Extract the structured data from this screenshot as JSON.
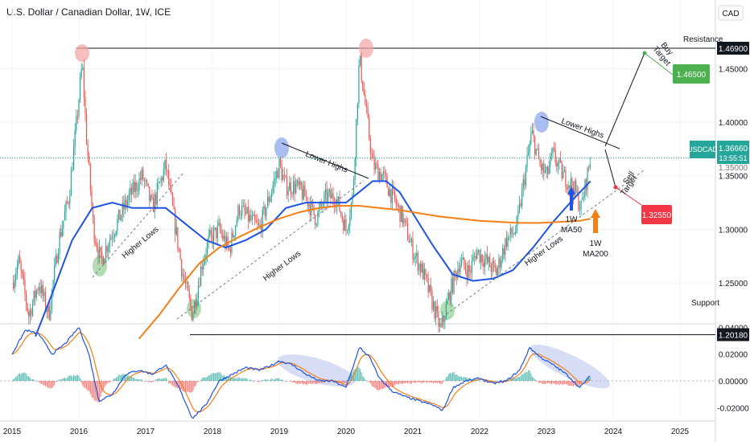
{
  "header": {
    "title": "U.S. Dollar / Canadian Dollar, 1W, ICE",
    "currency": "CAD"
  },
  "chart_data": {
    "type": "candlestick",
    "title": "U.S. Dollar / Canadian Dollar, 1W, ICE",
    "x_ticks": [
      "2015",
      "2016",
      "2017",
      "2018",
      "2019",
      "2020",
      "2021",
      "2022",
      "2023",
      "2024",
      "2025"
    ],
    "y_ticks": [
      "1.45000",
      "1.40000",
      "1.35000",
      "1.30000",
      "1.25000"
    ],
    "ylim": [
      1.19,
      1.49
    ],
    "price_path": [
      [
        2015.0,
        1.25
      ],
      [
        2015.1,
        1.27
      ],
      [
        2015.25,
        1.22
      ],
      [
        2015.4,
        1.25
      ],
      [
        2015.55,
        1.22
      ],
      [
        2015.7,
        1.29
      ],
      [
        2015.85,
        1.33
      ],
      [
        2015.95,
        1.39
      ],
      [
        2016.05,
        1.455
      ],
      [
        2016.12,
        1.38
      ],
      [
        2016.22,
        1.3
      ],
      [
        2016.33,
        1.27
      ],
      [
        2016.45,
        1.29
      ],
      [
        2016.6,
        1.31
      ],
      [
        2016.75,
        1.33
      ],
      [
        2016.95,
        1.35
      ],
      [
        2017.1,
        1.32
      ],
      [
        2017.3,
        1.36
      ],
      [
        2017.45,
        1.3
      ],
      [
        2017.55,
        1.26
      ],
      [
        2017.7,
        1.22
      ],
      [
        2017.85,
        1.27
      ],
      [
        2017.95,
        1.29
      ],
      [
        2018.1,
        1.3
      ],
      [
        2018.25,
        1.28
      ],
      [
        2018.4,
        1.32
      ],
      [
        2018.55,
        1.31
      ],
      [
        2018.7,
        1.3
      ],
      [
        2018.85,
        1.33
      ],
      [
        2019.0,
        1.36
      ],
      [
        2019.1,
        1.34
      ],
      [
        2019.25,
        1.34
      ],
      [
        2019.4,
        1.33
      ],
      [
        2019.55,
        1.31
      ],
      [
        2019.7,
        1.33
      ],
      [
        2019.85,
        1.33
      ],
      [
        2020.0,
        1.3
      ],
      [
        2020.1,
        1.33
      ],
      [
        2020.2,
        1.46
      ],
      [
        2020.28,
        1.42
      ],
      [
        2020.4,
        1.36
      ],
      [
        2020.55,
        1.35
      ],
      [
        2020.7,
        1.33
      ],
      [
        2020.85,
        1.31
      ],
      [
        2021.0,
        1.28
      ],
      [
        2021.15,
        1.26
      ],
      [
        2021.3,
        1.23
      ],
      [
        2021.42,
        1.205
      ],
      [
        2021.55,
        1.24
      ],
      [
        2021.7,
        1.27
      ],
      [
        2021.85,
        1.26
      ],
      [
        2021.95,
        1.28
      ],
      [
        2022.1,
        1.27
      ],
      [
        2022.25,
        1.26
      ],
      [
        2022.4,
        1.29
      ],
      [
        2022.55,
        1.3
      ],
      [
        2022.65,
        1.34
      ],
      [
        2022.78,
        1.39
      ],
      [
        2022.9,
        1.36
      ],
      [
        2023.0,
        1.35
      ],
      [
        2023.1,
        1.37
      ],
      [
        2023.25,
        1.35
      ],
      [
        2023.4,
        1.34
      ],
      [
        2023.52,
        1.32
      ],
      [
        2023.58,
        1.34
      ],
      [
        2023.66,
        1.3666
      ]
    ],
    "series": [
      {
        "name": "1W MA50",
        "color": "#1e53e5",
        "x": [
          2015.35,
          2015.6,
          2015.9,
          2016.2,
          2016.5,
          2016.8,
          2017.1,
          2017.3,
          2017.6,
          2017.9,
          2018.2,
          2018.5,
          2018.8,
          2019.1,
          2019.4,
          2019.7,
          2020.0,
          2020.2,
          2020.4,
          2020.6,
          2020.8,
          2021.0,
          2021.3,
          2021.6,
          2021.9,
          2022.2,
          2022.5,
          2022.8,
          2023.1,
          2023.4,
          2023.66
        ],
        "values": [
          1.2,
          1.24,
          1.29,
          1.32,
          1.325,
          1.32,
          1.32,
          1.32,
          1.305,
          1.29,
          1.283,
          1.29,
          1.3,
          1.32,
          1.325,
          1.325,
          1.325,
          1.335,
          1.345,
          1.345,
          1.335,
          1.315,
          1.285,
          1.258,
          1.252,
          1.254,
          1.262,
          1.283,
          1.307,
          1.328,
          1.345
        ]
      },
      {
        "name": "1W MA200",
        "color": "#f57f17",
        "x": [
          2016.9,
          2017.2,
          2017.5,
          2017.8,
          2018.1,
          2018.4,
          2018.7,
          2019.0,
          2019.3,
          2019.6,
          2019.9,
          2020.2,
          2020.5,
          2020.8,
          2021.1,
          2021.4,
          2021.7,
          2022.0,
          2022.3,
          2022.6,
          2022.9,
          2023.2,
          2023.5,
          2023.66
        ],
        "values": [
          1.198,
          1.22,
          1.245,
          1.268,
          1.283,
          1.293,
          1.302,
          1.31,
          1.316,
          1.32,
          1.322,
          1.322,
          1.32,
          1.318,
          1.315,
          1.312,
          1.31,
          1.308,
          1.307,
          1.306,
          1.306,
          1.307,
          1.308,
          1.31
        ]
      }
    ],
    "levels": [
      {
        "label": "Resistance",
        "price": "1.46900",
        "value": 1.469
      },
      {
        "label": "Support",
        "price": "1.20180",
        "value": 1.2018
      }
    ],
    "last_price": {
      "symbol": "USDCAD",
      "price": "1.36660",
      "countdown": "13:55:51",
      "value": 1.3666
    },
    "price_below_last": "1.35000",
    "targets": [
      {
        "label": "Buy Target",
        "value_text": "1.46500",
        "value": 1.465,
        "color": "#4caf50"
      },
      {
        "label": "Sell Target",
        "value_text": "1.32550",
        "value": 1.3255,
        "color": "#f23645"
      }
    ],
    "annotations": {
      "lower_highs": "Lower Highs",
      "higher_lows": "Higher Lows",
      "ma50_line1": "1W",
      "ma50_line2": "MA50",
      "ma200_line1": "1W",
      "ma200_line2": "MA200",
      "buy_target_l1": "Buy",
      "buy_target_l2": "Target",
      "sell_target_l1": "Sell",
      "sell_target_l2": "Target"
    },
    "indicator": {
      "type": "macd",
      "y_ticks": [
        "0.04000",
        "0.02000",
        "0.00000",
        "-0.02000"
      ],
      "ylim": [
        -0.03,
        0.043
      ],
      "macd_path": [
        [
          2015.0,
          0.02
        ],
        [
          2015.2,
          0.038
        ],
        [
          2015.4,
          0.035
        ],
        [
          2015.6,
          0.02
        ],
        [
          2015.8,
          0.028
        ],
        [
          2016.0,
          0.04
        ],
        [
          2016.15,
          0.02
        ],
        [
          2016.3,
          -0.015
        ],
        [
          2016.5,
          -0.01
        ],
        [
          2016.7,
          0.005
        ],
        [
          2016.9,
          0.008
        ],
        [
          2017.1,
          0.005
        ],
        [
          2017.3,
          0.012
        ],
        [
          2017.5,
          -0.005
        ],
        [
          2017.7,
          -0.028
        ],
        [
          2017.9,
          -0.018
        ],
        [
          2018.1,
          0.0
        ],
        [
          2018.3,
          0.005
        ],
        [
          2018.5,
          0.01
        ],
        [
          2018.7,
          0.008
        ],
        [
          2018.9,
          0.012
        ],
        [
          2019.0,
          0.015
        ],
        [
          2019.2,
          0.012
        ],
        [
          2019.4,
          0.005
        ],
        [
          2019.6,
          0.0
        ],
        [
          2019.8,
          0.0
        ],
        [
          2020.0,
          -0.005
        ],
        [
          2020.2,
          0.025
        ],
        [
          2020.35,
          0.018
        ],
        [
          2020.5,
          0.002
        ],
        [
          2020.7,
          -0.008
        ],
        [
          2020.9,
          -0.012
        ],
        [
          2021.1,
          -0.015
        ],
        [
          2021.3,
          -0.018
        ],
        [
          2021.45,
          -0.022
        ],
        [
          2021.6,
          -0.005
        ],
        [
          2021.8,
          0.0
        ],
        [
          2022.0,
          0.002
        ],
        [
          2022.2,
          -0.002
        ],
        [
          2022.4,
          0.0
        ],
        [
          2022.6,
          0.008
        ],
        [
          2022.75,
          0.025
        ],
        [
          2022.9,
          0.018
        ],
        [
          2023.1,
          0.012
        ],
        [
          2023.3,
          0.005
        ],
        [
          2023.5,
          -0.005
        ],
        [
          2023.66,
          0.004
        ]
      ]
    }
  }
}
